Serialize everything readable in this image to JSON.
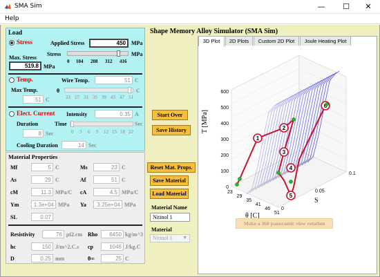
{
  "window": {
    "title": "SMA Sim",
    "minimize": "—",
    "maximize": "☐",
    "close": "✕"
  },
  "menu": {
    "help": "Help"
  },
  "app_title": "Shape Memory Alloy Simulator (SMA Sim)",
  "load": {
    "title": "Load",
    "stress": {
      "label": "Stress",
      "applied_label": "Applied Stress",
      "applied_value": "450",
      "applied_unit": "MPa",
      "slider_label": "Stress",
      "slider_unit": "MPa",
      "slider_level": 0.86,
      "ticks": [
        "0",
        "104",
        "208",
        "312",
        "416"
      ],
      "max_label": "Max. Stress",
      "max_value": "519.8",
      "max_unit": "MPa"
    },
    "temp": {
      "label": "Temp.",
      "wire_label": "Wire Temp.",
      "wire_value": "51",
      "wire_unit": "C",
      "max_label": "Max Temp.",
      "max_value": "51",
      "max_unit": "C",
      "theta_label": "θ",
      "theta_unit": "C",
      "slider_level": 0.98,
      "ticks": [
        "23",
        "27",
        "31",
        "35",
        "39",
        "43",
        "47",
        "51"
      ]
    },
    "current": {
      "label": "Elect. Current",
      "intensity_label": "Intensity",
      "intensity_value": "0.35",
      "intensity_unit": "A",
      "duration_label": "Duration",
      "duration_value": "8",
      "duration_unit": "Sec",
      "time_label": "Time",
      "time_unit": "Sec",
      "slider_level": 0.0,
      "ticks": [
        "0",
        "3",
        "6",
        "9",
        "12",
        "15",
        "18",
        "22"
      ],
      "cooling_label": "Cooling Duration",
      "cooling_value": "14",
      "cooling_unit": "Sec"
    }
  },
  "material": {
    "title": "Material Properties",
    "rows": [
      {
        "l1": "Mf",
        "v1": "5",
        "u1": "C",
        "l2": "Ms",
        "v2": "23",
        "u2": "C"
      },
      {
        "l1": "As",
        "v1": "29",
        "u1": "C",
        "l2": "Af",
        "v2": "51",
        "u2": "C"
      },
      {
        "l1": "cM",
        "v1": "11.3",
        "u1": "MPa/C",
        "l2": "cA",
        "v2": "4.5",
        "u2": "MPa/C"
      },
      {
        "l1": "Ym",
        "v1": "1.3e+04",
        "u1": "MPa",
        "l2": "Ya",
        "v2": "3.25e+04",
        "u2": "MPa"
      }
    ],
    "sl_label": "SL",
    "sl_value": "0.07",
    "rows2": [
      {
        "l1": "Resistivity",
        "v1": "76",
        "u1": "μΩ.cm",
        "l2": "Rho",
        "v2": "6450",
        "u2": "kg/m^3"
      },
      {
        "l1": "hc",
        "v1": "150",
        "u1": "J/m^2.C.s",
        "l2": "cp",
        "v2": "1046",
        "u2": "J/kg.C"
      },
      {
        "l1": "D",
        "v1": "0.25",
        "u1": "mm",
        "l2": "θ∞",
        "v2": "25",
        "u2": "C"
      }
    ]
  },
  "buttons": {
    "start_over": "Start Over",
    "save_history": "Save History",
    "reset_mat": "Reset Mat. Props.",
    "save_material": "Save Material",
    "load_material": "Load Material"
  },
  "material_name": {
    "label": "Material Name",
    "value": "Nitinol 1"
  },
  "material_select": {
    "label": "Material",
    "value": "Nitinol 1"
  },
  "tabs": [
    "3D Plot",
    "2D Plots",
    "Custom 2D Plot",
    "Joule Heating Plot"
  ],
  "panoramic_button": "Make a 360 panoramic view rotation",
  "plot": {
    "ylabel": "T  [MPa]",
    "xlabel": "θ  [C]",
    "zlabel": "S",
    "y_ticks": [
      "0",
      "100",
      "200",
      "300",
      "400",
      "500",
      "600"
    ],
    "x_ticks": [
      "23",
      "29",
      "35",
      "41",
      "46",
      "51"
    ],
    "z_ticks": [
      "0",
      "0.05",
      "0.1"
    ],
    "markers": [
      "1",
      "2",
      "3",
      "4",
      "5",
      "6"
    ],
    "colors": {
      "curves": "#3d3dd6",
      "path": "#c8102e",
      "marker_fill": "#2bb32b"
    }
  }
}
